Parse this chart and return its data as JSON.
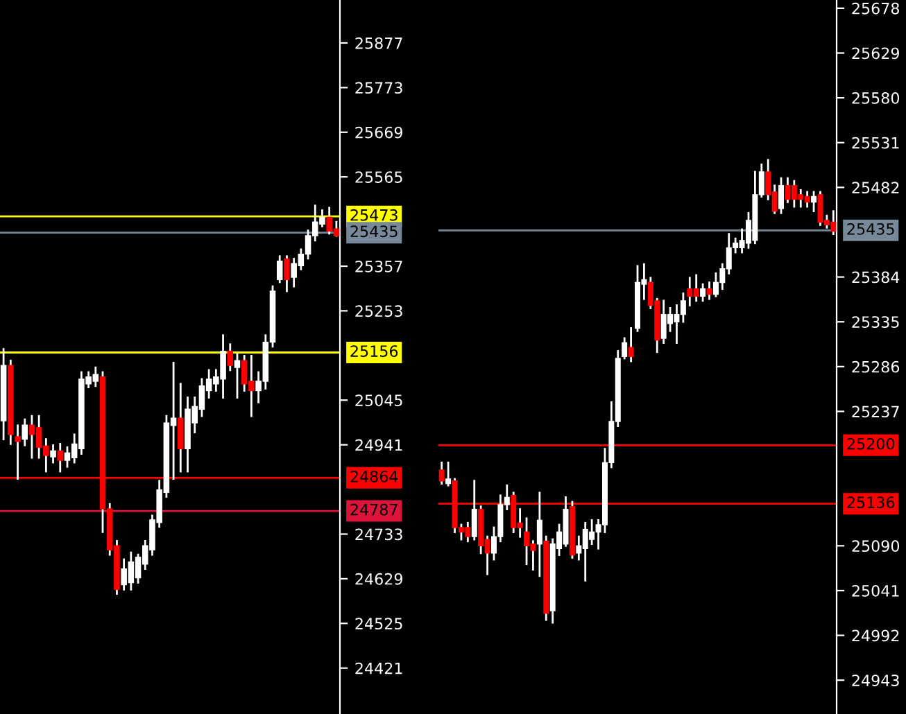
{
  "chart_data": [
    {
      "type": "candlestick",
      "categories": [
        null,
        null,
        null,
        null,
        null,
        null,
        null,
        null,
        null,
        null,
        null,
        null,
        null,
        null,
        null,
        null,
        null,
        null,
        null,
        null,
        null,
        null,
        null,
        null,
        null,
        null,
        null,
        null,
        null,
        null,
        null,
        null,
        null,
        null,
        null,
        null,
        null,
        null,
        null,
        null,
        null,
        null,
        null,
        null,
        null,
        null,
        null,
        null
      ],
      "ohlc": [
        [
          24997,
          25164,
          24954,
          25126
        ],
        [
          25126,
          25137,
          24943,
          24965
        ],
        [
          24960,
          24986,
          24862,
          24949
        ],
        [
          24954,
          25000,
          24940,
          24987
        ],
        [
          24987,
          25008,
          24911,
          24965
        ],
        [
          24981,
          25008,
          24911,
          24935
        ],
        [
          24938,
          24954,
          24879,
          24916
        ],
        [
          24913,
          24940,
          24900,
          24927
        ],
        [
          24927,
          24943,
          24879,
          24905
        ],
        [
          24905,
          24935,
          24890,
          24922
        ],
        [
          24911,
          24965,
          24900,
          24943
        ],
        [
          24932,
          25110,
          24920,
          25094
        ],
        [
          25083,
          25110,
          25075,
          25099
        ],
        [
          25089,
          25121,
          25078,
          25105
        ],
        [
          25099,
          25110,
          24738,
          24792
        ],
        [
          24792,
          24803,
          24685,
          24696
        ],
        [
          24706,
          24717,
          24594,
          24604
        ],
        [
          24615,
          24674,
          24604,
          24652
        ],
        [
          24620,
          24690,
          24604,
          24668
        ],
        [
          24631,
          24685,
          24620,
          24679
        ],
        [
          24663,
          24717,
          24652,
          24706
        ],
        [
          24696,
          24776,
          24685,
          24766
        ],
        [
          24760,
          24857,
          24750,
          24836
        ],
        [
          24830,
          25008,
          24820,
          24992
        ],
        [
          24986,
          25132,
          24862,
          25003
        ],
        [
          25003,
          25083,
          24879,
          24932
        ],
        [
          24932,
          25051,
          24879,
          25024
        ],
        [
          24992,
          25051,
          24970,
          25030
        ],
        [
          25024,
          25094,
          25008,
          25078
        ],
        [
          25067,
          25115,
          25051,
          25094
        ],
        [
          25083,
          25115,
          25067,
          25099
        ],
        [
          25094,
          25196,
          25051,
          25159
        ],
        [
          25159,
          25175,
          25115,
          25126
        ],
        [
          25121,
          25153,
          25051,
          25137
        ],
        [
          25137,
          25148,
          25067,
          25083
        ],
        [
          25089,
          25148,
          25008,
          25067
        ],
        [
          25067,
          25110,
          25040,
          25089
        ],
        [
          25089,
          25196,
          25072,
          25180
        ],
        [
          25180,
          25310,
          25170,
          25299
        ],
        [
          25326,
          25380,
          25320,
          25369
        ],
        [
          25374,
          25380,
          25299,
          25326
        ],
        [
          25331,
          25374,
          25310,
          25363
        ],
        [
          25358,
          25396,
          25350,
          25385
        ],
        [
          25385,
          25440,
          25375,
          25428
        ],
        [
          25428,
          25498,
          25417,
          25460
        ],
        [
          25455,
          25487,
          25450,
          25471
        ],
        [
          25471,
          25493,
          25433,
          25439
        ],
        [
          25444,
          25460,
          25428,
          25428
        ]
      ],
      "colors": [
        "#ffffff",
        "#ff0000",
        "#ff0000",
        "#ffffff",
        "#ff0000",
        "#ff0000",
        "#ff0000",
        "#ffffff",
        "#ff0000",
        "#ffffff",
        "#ffffff",
        "#ffffff",
        "#ffffff",
        "#ffffff",
        "#ff0000",
        "#ff0000",
        "#ff0000",
        "#ffffff",
        "#ffffff",
        "#ffffff",
        "#ffffff",
        "#ffffff",
        "#ffffff",
        "#ffffff",
        "#ffffff",
        "#ff0000",
        "#ffffff",
        "#ffffff",
        "#ffffff",
        "#ffffff",
        "#ffffff",
        "#ffffff",
        "#ff0000",
        "#ffffff",
        "#ff0000",
        "#ff0000",
        "#ffffff",
        "#ffffff",
        "#ffffff",
        "#ffffff",
        "#ff0000",
        "#ffffff",
        "#ffffff",
        "#ffffff",
        "#ffffff",
        "#ffffff",
        "#ff0000",
        "#ff0000"
      ],
      "ylim": [
        24314,
        25977
      ],
      "yticks": [
        25877,
        25773,
        25669,
        25565,
        25357,
        25253,
        25045,
        24941,
        24733,
        24629,
        24525,
        24421
      ],
      "tick_labels": "y",
      "grid": false,
      "ref_lines": [
        {
          "axis": "y",
          "value": 25473,
          "label": "25473",
          "color": "#ffff00"
        },
        {
          "axis": "y",
          "value": 25435,
          "label": "25435",
          "color": "#778899"
        },
        {
          "axis": "y",
          "value": 25156,
          "label": "25156",
          "color": "#ffff00"
        },
        {
          "axis": "y",
          "value": 24864,
          "label": "24864",
          "color": "#ff0000"
        },
        {
          "axis": "y",
          "value": 24787,
          "label": "24787",
          "color": "#dc143c"
        }
      ]
    },
    {
      "type": "candlestick",
      "categories": [
        null,
        null,
        null,
        null,
        null,
        null,
        null,
        null,
        null,
        null,
        null,
        null,
        null,
        null,
        null,
        null,
        null,
        null,
        null,
        null,
        null,
        null,
        null,
        null,
        null,
        null,
        null,
        null,
        null,
        null,
        null,
        null,
        null,
        null,
        null,
        null,
        null,
        null,
        null,
        null,
        null,
        null,
        null,
        null,
        null,
        null,
        null,
        null,
        null,
        null,
        null,
        null,
        null,
        null,
        null,
        null,
        null,
        null,
        null,
        null,
        null
      ],
      "ohlc": [
        [
          25173,
          25181,
          25158,
          25161
        ],
        [
          25158,
          25181,
          25156,
          25163
        ],
        [
          25161,
          25163,
          25105,
          25110
        ],
        [
          25110,
          25113,
          25097,
          25105
        ],
        [
          25110,
          25115,
          25095,
          25100
        ],
        [
          25100,
          25161,
          25097,
          25130
        ],
        [
          25130,
          25133,
          25082,
          25090
        ],
        [
          25097,
          25100,
          25059,
          25082
        ],
        [
          25082,
          25110,
          25075,
          25100
        ],
        [
          25100,
          25145,
          25095,
          25135
        ],
        [
          25135,
          25156,
          25130,
          25143
        ],
        [
          25145,
          25148,
          25105,
          25110
        ],
        [
          25115,
          25130,
          25100,
          25110
        ],
        [
          25105,
          25120,
          25070,
          25090
        ],
        [
          25092,
          25095,
          25064,
          25085
        ],
        [
          25092,
          25148,
          25057,
          25118
        ],
        [
          25095,
          25100,
          25009,
          25016
        ],
        [
          25019,
          25097,
          25006,
          25092
        ],
        [
          25087,
          25113,
          25080,
          25105
        ],
        [
          25092,
          25143,
          25090,
          25130
        ],
        [
          25133,
          25138,
          25077,
          25080
        ],
        [
          25082,
          25100,
          25075,
          25090
        ],
        [
          25087,
          25115,
          25052,
          25108
        ],
        [
          25097,
          25118,
          25092,
          25105
        ],
        [
          25105,
          25118,
          25087,
          25113
        ],
        [
          25113,
          25196,
          25105,
          25181
        ],
        [
          25181,
          25247,
          25176,
          25226
        ],
        [
          25226,
          25303,
          25221,
          25295
        ],
        [
          25297,
          25317,
          25295,
          25312
        ],
        [
          25307,
          25328,
          25292,
          25297
        ],
        [
          25328,
          25396,
          25325,
          25378
        ],
        [
          25376,
          25398,
          25360,
          25381
        ],
        [
          25378,
          25383,
          25350,
          25353
        ],
        [
          25358,
          25360,
          25302,
          25315
        ],
        [
          25317,
          25358,
          25312,
          25343
        ],
        [
          25333,
          25350,
          25325,
          25343
        ],
        [
          25335,
          25353,
          25312,
          25343
        ],
        [
          25343,
          25366,
          25335,
          25358
        ],
        [
          25371,
          25383,
          25353,
          25363
        ],
        [
          25371,
          25386,
          25358,
          25363
        ],
        [
          25363,
          25376,
          25358,
          25371
        ],
        [
          25371,
          25378,
          25360,
          25365
        ],
        [
          25365,
          25388,
          25363,
          25378
        ],
        [
          25378,
          25398,
          25371,
          25393
        ],
        [
          25393,
          25431,
          25388,
          25416
        ],
        [
          25416,
          25426,
          25411,
          25421
        ],
        [
          25416,
          25436,
          25411,
          25424
        ],
        [
          25421,
          25454,
          25416,
          25446
        ],
        [
          25424,
          25499,
          25421,
          25474
        ],
        [
          25474,
          25507,
          25472,
          25499
        ],
        [
          25499,
          25512,
          25469,
          25474
        ],
        [
          25477,
          25484,
          25454,
          25456
        ],
        [
          25459,
          25492,
          25454,
          25484
        ],
        [
          25484,
          25492,
          25466,
          25469
        ],
        [
          25484,
          25489,
          25461,
          25469
        ],
        [
          25474,
          25479,
          25461,
          25469
        ],
        [
          25472,
          25477,
          25461,
          25466
        ],
        [
          25466,
          25477,
          25456,
          25472
        ],
        [
          25474,
          25477,
          25441,
          25444
        ],
        [
          25446,
          25451,
          25438,
          25441
        ],
        [
          25444,
          25456,
          25431,
          25434
        ]
      ],
      "colors": [
        "#ff0000",
        "#ffffff",
        "#ff0000",
        "#ff0000",
        "#ff0000",
        "#ffffff",
        "#ff0000",
        "#ff0000",
        "#ffffff",
        "#ffffff",
        "#ffffff",
        "#ff0000",
        "#ff0000",
        "#ff0000",
        "#ff0000",
        "#ffffff",
        "#ff0000",
        "#ffffff",
        "#ffffff",
        "#ffffff",
        "#ff0000",
        "#ffffff",
        "#ffffff",
        "#ffffff",
        "#ffffff",
        "#ffffff",
        "#ffffff",
        "#ffffff",
        "#ffffff",
        "#ff0000",
        "#ffffff",
        "#ffffff",
        "#ff0000",
        "#ff0000",
        "#ffffff",
        "#ffffff",
        "#ffffff",
        "#ffffff",
        "#ff0000",
        "#ff0000",
        "#ffffff",
        "#ff0000",
        "#ffffff",
        "#ffffff",
        "#ffffff",
        "#ffffff",
        "#ffffff",
        "#ffffff",
        "#ffffff",
        "#ffffff",
        "#ff0000",
        "#ff0000",
        "#ffffff",
        "#ff0000",
        "#ff0000",
        "#ff0000",
        "#ff0000",
        "#ffffff",
        "#ff0000",
        "#ff0000",
        "#ff0000"
      ],
      "ylim": [
        24906,
        25687
      ],
      "yticks": [
        25678,
        25629,
        25580,
        25531,
        25482,
        25384,
        25335,
        25286,
        25237,
        25090,
        25041,
        24992,
        24943
      ],
      "tick_labels": "y",
      "grid": false,
      "ref_lines": [
        {
          "axis": "y",
          "value": 25435,
          "label": "25435",
          "color": "#778899"
        },
        {
          "axis": "y",
          "value": 25200,
          "label": "25200",
          "color": "#ff0000"
        },
        {
          "axis": "y",
          "value": 25136,
          "label": "25136",
          "color": "#ff0000"
        }
      ]
    }
  ]
}
